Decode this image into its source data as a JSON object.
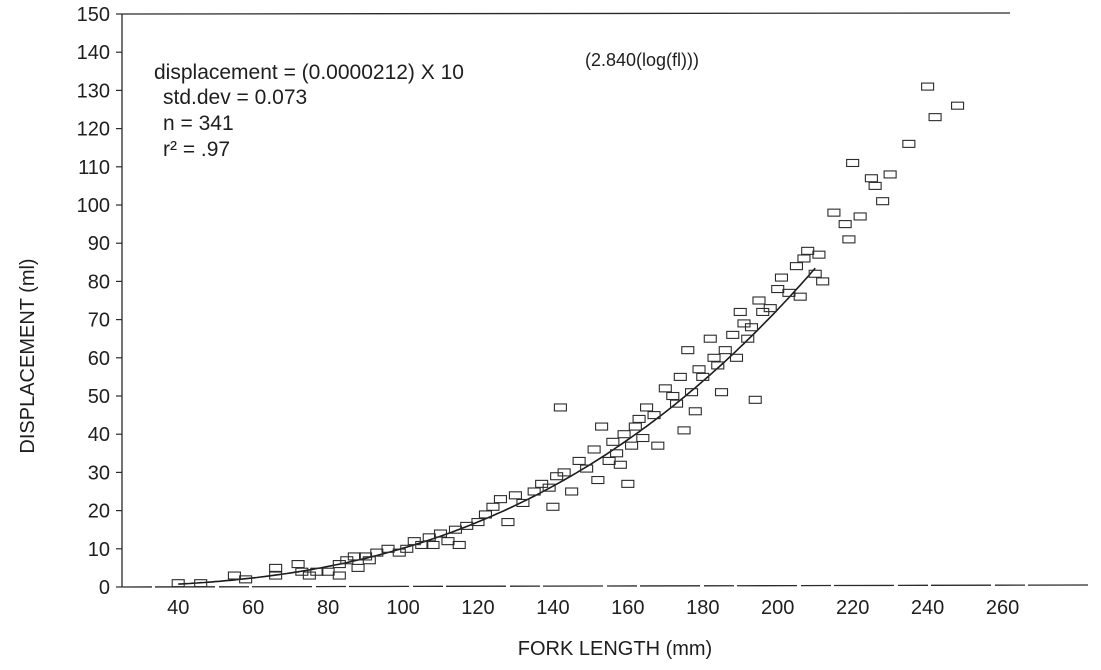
{
  "chart_data": {
    "type": "scatter",
    "xlabel": "FORK LENGTH (mm)",
    "ylabel": "DISPLACEMENT (ml)",
    "xlim": [
      25,
      270
    ],
    "ylim": [
      0,
      150
    ],
    "x_ticks": [
      40,
      60,
      80,
      100,
      120,
      140,
      160,
      180,
      200,
      220,
      240,
      260
    ],
    "y_ticks": [
      0,
      10,
      20,
      30,
      40,
      50,
      60,
      70,
      80,
      90,
      100,
      110,
      120,
      130,
      140,
      150
    ],
    "grid": false,
    "annotations": {
      "equation_prefix": "displacement = (0.0000212) X 10",
      "equation_exponent": "(2.840(log(fl)))",
      "std_dev": "std.dev = 0.073",
      "n": "n = 341",
      "r2": "r² = .97"
    },
    "fit": {
      "coefficient": 2.12e-05,
      "exponent": 2.84,
      "x_range": [
        40,
        210
      ]
    },
    "points": [
      [
        40,
        1
      ],
      [
        46,
        1
      ],
      [
        55,
        3
      ],
      [
        58,
        2
      ],
      [
        66,
        5
      ],
      [
        66,
        3
      ],
      [
        72,
        6
      ],
      [
        73,
        4
      ],
      [
        75,
        3
      ],
      [
        77,
        4
      ],
      [
        80,
        4
      ],
      [
        83,
        3
      ],
      [
        83,
        6
      ],
      [
        85,
        7
      ],
      [
        87,
        8
      ],
      [
        88,
        5
      ],
      [
        90,
        8
      ],
      [
        91,
        7
      ],
      [
        93,
        9
      ],
      [
        96,
        10
      ],
      [
        99,
        9
      ],
      [
        101,
        10
      ],
      [
        103,
        12
      ],
      [
        105,
        11
      ],
      [
        107,
        13
      ],
      [
        108,
        11
      ],
      [
        110,
        14
      ],
      [
        112,
        12
      ],
      [
        114,
        15
      ],
      [
        115,
        11
      ],
      [
        117,
        16
      ],
      [
        120,
        17
      ],
      [
        122,
        19
      ],
      [
        124,
        21
      ],
      [
        126,
        23
      ],
      [
        128,
        17
      ],
      [
        130,
        24
      ],
      [
        132,
        22
      ],
      [
        135,
        25
      ],
      [
        137,
        27
      ],
      [
        139,
        26
      ],
      [
        140,
        21
      ],
      [
        141,
        29
      ],
      [
        142,
        47
      ],
      [
        143,
        30
      ],
      [
        145,
        25
      ],
      [
        147,
        33
      ],
      [
        149,
        31
      ],
      [
        151,
        36
      ],
      [
        152,
        28
      ],
      [
        153,
        42
      ],
      [
        155,
        33
      ],
      [
        156,
        38
      ],
      [
        157,
        35
      ],
      [
        158,
        32
      ],
      [
        159,
        40
      ],
      [
        160,
        27
      ],
      [
        161,
        37
      ],
      [
        162,
        42
      ],
      [
        163,
        44
      ],
      [
        164,
        39
      ],
      [
        165,
        47
      ],
      [
        167,
        45
      ],
      [
        168,
        37
      ],
      [
        170,
        52
      ],
      [
        172,
        50
      ],
      [
        173,
        48
      ],
      [
        174,
        55
      ],
      [
        175,
        41
      ],
      [
        176,
        62
      ],
      [
        177,
        51
      ],
      [
        178,
        46
      ],
      [
        179,
        57
      ],
      [
        180,
        55
      ],
      [
        182,
        65
      ],
      [
        183,
        60
      ],
      [
        184,
        58
      ],
      [
        185,
        51
      ],
      [
        186,
        62
      ],
      [
        188,
        66
      ],
      [
        189,
        60
      ],
      [
        190,
        72
      ],
      [
        191,
        69
      ],
      [
        192,
        65
      ],
      [
        193,
        68
      ],
      [
        194,
        49
      ],
      [
        195,
        75
      ],
      [
        196,
        72
      ],
      [
        198,
        73
      ],
      [
        200,
        78
      ],
      [
        201,
        81
      ],
      [
        203,
        77
      ],
      [
        205,
        84
      ],
      [
        206,
        76
      ],
      [
        207,
        86
      ],
      [
        208,
        88
      ],
      [
        210,
        82
      ],
      [
        211,
        87
      ],
      [
        212,
        80
      ],
      [
        215,
        98
      ],
      [
        218,
        95
      ],
      [
        219,
        91
      ],
      [
        220,
        111
      ],
      [
        222,
        97
      ],
      [
        225,
        107
      ],
      [
        226,
        105
      ],
      [
        228,
        101
      ],
      [
        230,
        108
      ],
      [
        235,
        116
      ],
      [
        240,
        131
      ],
      [
        242,
        123
      ],
      [
        248,
        126
      ]
    ]
  }
}
